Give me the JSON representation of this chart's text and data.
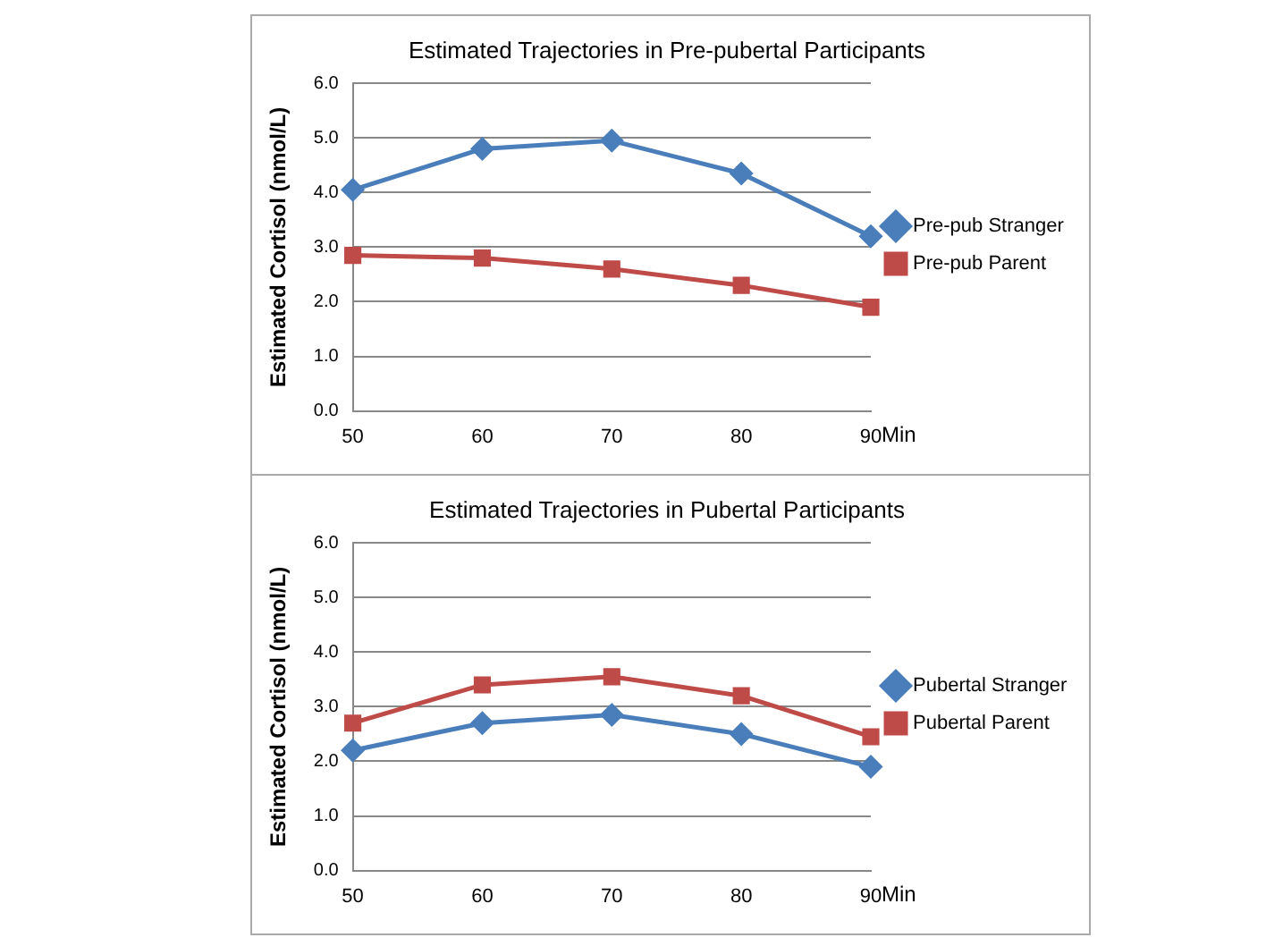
{
  "chart_data": [
    {
      "type": "line",
      "title": "Estimated Trajectories in Pre-pubertal Participants",
      "xlabel": "Min",
      "ylabel": "Estimated Cortisol (nmol/L)",
      "categories": [
        "50",
        "60",
        "70",
        "80",
        "90"
      ],
      "series": [
        {
          "name": "Pre-pub Stranger",
          "color": "#4a7ebb",
          "marker": "diamond",
          "values": [
            4.05,
            4.8,
            4.95,
            4.35,
            3.2
          ]
        },
        {
          "name": "Pre-pub Parent",
          "color": "#be4b48",
          "marker": "square",
          "values": [
            2.85,
            2.8,
            2.6,
            2.3,
            1.9
          ]
        }
      ],
      "ylim": [
        0,
        6
      ],
      "yticks": [
        {
          "value": 0,
          "label": "0.0"
        },
        {
          "value": 1,
          "label": "1.0"
        },
        {
          "value": 2,
          "label": "2.0"
        },
        {
          "value": 3,
          "label": "3.0"
        },
        {
          "value": 4,
          "label": "4.0"
        },
        {
          "value": 5,
          "label": "5.0"
        },
        {
          "value": 6,
          "label": "6.0"
        }
      ],
      "grid": "y",
      "legend": "right"
    },
    {
      "type": "line",
      "title": "Estimated Trajectories in Pubertal Participants",
      "xlabel": "Min",
      "ylabel": "Estimated Cortisol (nmol/L)",
      "categories": [
        "50",
        "60",
        "70",
        "80",
        "90"
      ],
      "series": [
        {
          "name": "Pubertal Stranger",
          "color": "#4a7ebb",
          "marker": "diamond",
          "values": [
            2.2,
            2.7,
            2.85,
            2.5,
            1.9
          ]
        },
        {
          "name": "Pubertal Parent",
          "color": "#be4b48",
          "marker": "square",
          "values": [
            2.7,
            3.4,
            3.55,
            3.2,
            2.45
          ]
        }
      ],
      "ylim": [
        0,
        6
      ],
      "yticks": [
        {
          "value": 0,
          "label": "0.0"
        },
        {
          "value": 1,
          "label": "1.0"
        },
        {
          "value": 2,
          "label": "2.0"
        },
        {
          "value": 3,
          "label": "3.0"
        },
        {
          "value": 4,
          "label": "4.0"
        },
        {
          "value": 5,
          "label": "5.0"
        },
        {
          "value": 6,
          "label": "6.0"
        }
      ],
      "grid": "y",
      "legend": "right"
    }
  ]
}
